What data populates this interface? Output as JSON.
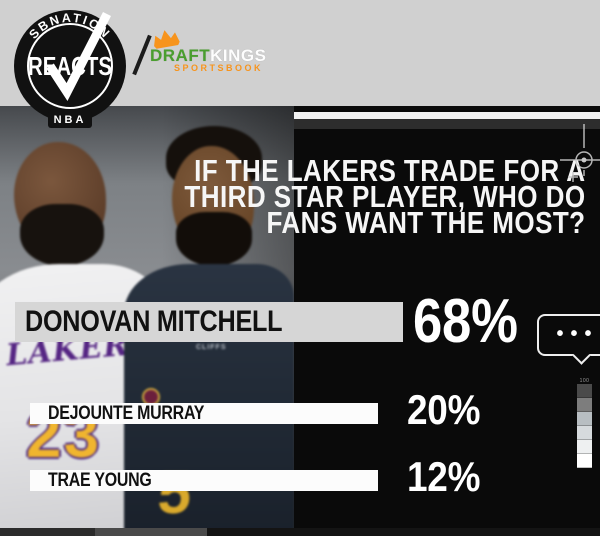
{
  "colors": {
    "banner_gray": "#d0d0d0",
    "panel_black": "#0a0a0a",
    "dk_green": "#4a9e2f",
    "dk_orange": "#f7941d",
    "lakers_purple": "#552583",
    "lakers_gold": "#f0b52f",
    "bar_featured_gray": "#d6d6d6",
    "bar_white": "#fcfcfc"
  },
  "header": {
    "reacts_logo": {
      "arc_top": "SBNATION",
      "name": "REACTS",
      "arc_bottom": "NBA"
    },
    "separator": "/",
    "draftkings": {
      "draft": "DRAFT",
      "kings": "KINGS",
      "sportsbook": "SPORTSBOOK"
    }
  },
  "question": {
    "line1": "IF THE LAKERS TRADE FOR A",
    "line2": "THIRD STAR PLAYER, WHO DO",
    "line3": "FANS WANT THE MOST?"
  },
  "poll": {
    "options": [
      {
        "name": "DONOVAN MITCHELL",
        "pct": "68%"
      },
      {
        "name": "DEJOUNTE MURRAY",
        "pct": "20%"
      },
      {
        "name": "TRAE YOUNG",
        "pct": "12%"
      }
    ],
    "bubble_dots": "•••"
  },
  "photo": {
    "lakers_wordmark": "LAKERS",
    "lebron_number": "23",
    "mitchell_number": "5",
    "jersey_patch": "CLIFFS"
  },
  "calibration_strip": {
    "label": "100",
    "colors": [
      "#4a4a4a",
      "#7d7d7d",
      "#b8bec2",
      "#d6dadd",
      "#eef0f1",
      "#ffffff"
    ]
  },
  "chart_data": {
    "type": "bar",
    "title": "IF THE LAKERS TRADE FOR A THIRD STAR PLAYER, WHO DO FANS WANT THE MOST?",
    "categories": [
      "DONOVAN MITCHELL",
      "DEJOUNTE MURRAY",
      "TRAE YOUNG"
    ],
    "values": [
      68,
      20,
      12
    ],
    "unit": "%",
    "legend": "none",
    "orientation": "horizontal"
  }
}
